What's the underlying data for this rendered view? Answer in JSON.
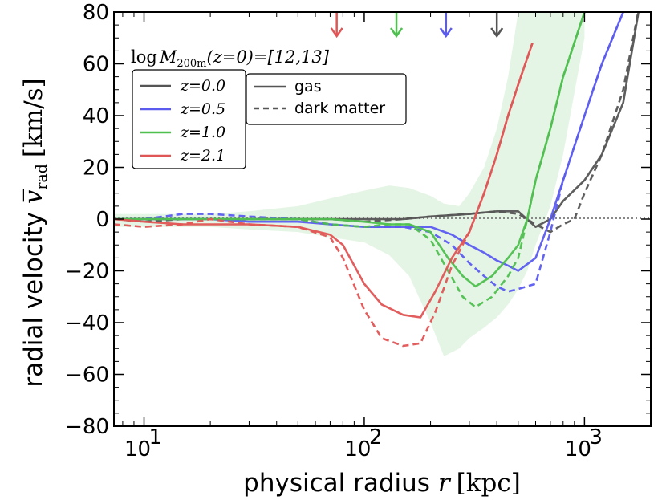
{
  "chart_data": {
    "type": "line",
    "xscale": "log",
    "xlim": [
      7.3,
      2000
    ],
    "ylim": [
      -80,
      80
    ],
    "xlabel": {
      "prefix": "physical radius ",
      "var": "r",
      "unit": "[kpc]"
    },
    "ylabel": {
      "prefix": "radial velocity ",
      "var": "v̅",
      "sub": "rad",
      "unit": "[km/s]"
    },
    "x_ticks": [
      {
        "value": 10,
        "label": "10",
        "exp": "1"
      },
      {
        "value": 100,
        "label": "10",
        "exp": "2"
      },
      {
        "value": 1000,
        "label": "10",
        "exp": "3"
      }
    ],
    "y_ticks": [
      -80,
      -60,
      -40,
      -20,
      0,
      20,
      40,
      60,
      80
    ],
    "y_tick_labels": [
      "−80",
      "−60",
      "−40",
      "−20",
      "0",
      "20",
      "40",
      "60",
      "80"
    ],
    "annotation": "log M200m(z=0)=[12,13]",
    "annotation_parts": {
      "log": "log",
      "M": "M",
      "sub": "200m",
      "rest": "(z=0)=[12,13]"
    },
    "legend_redshift": [
      {
        "label": "z=0.0",
        "color": "#555555"
      },
      {
        "label": "z=0.5",
        "color": "#5b5bf0"
      },
      {
        "label": "z=1.0",
        "color": "#4fbf4f"
      },
      {
        "label": "z=2.1",
        "color": "#e05555"
      }
    ],
    "legend_style": [
      {
        "label": "gas",
        "dash": "solid"
      },
      {
        "label": "dark matter",
        "dash": "dashed"
      }
    ],
    "arrows_x": [
      {
        "x": 75,
        "color": "#e05555"
      },
      {
        "x": 140,
        "color": "#4fbf4f"
      },
      {
        "x": 235,
        "color": "#5b5bf0"
      },
      {
        "x": 400,
        "color": "#555555"
      }
    ],
    "band": {
      "color": "#4fbf4f",
      "x": [
        7.3,
        10,
        15,
        20,
        30,
        50,
        70,
        100,
        130,
        160,
        200,
        230,
        270,
        300,
        350,
        400,
        450,
        500,
        550,
        600,
        700,
        800,
        1000
      ],
      "upper": [
        2,
        2,
        2,
        2,
        3,
        5,
        8,
        11,
        13,
        12,
        9,
        6,
        5,
        10,
        20,
        35,
        55,
        80,
        100,
        120,
        160,
        200,
        260
      ],
      "lower": [
        -3,
        -3,
        -3,
        -3,
        -4,
        -5,
        -7,
        -9,
        -14,
        -22,
        -40,
        -53,
        -50,
        -46,
        -42,
        -38,
        -33,
        -27,
        -20,
        -10,
        5,
        25,
        70
      ]
    },
    "series": [
      {
        "redshift": "z=0.0",
        "component": "gas",
        "color": "#555555",
        "x": [
          7.3,
          10,
          15,
          20,
          30,
          50,
          70,
          100,
          150,
          200,
          300,
          400,
          500,
          600,
          700,
          800,
          1000,
          1200,
          1500,
          1800
        ],
        "y": [
          0,
          0,
          0,
          0,
          0,
          0,
          0,
          0,
          0,
          1,
          2,
          3,
          3,
          -3,
          0,
          7,
          15,
          25,
          45,
          85
        ]
      },
      {
        "redshift": "z=0.0",
        "component": "dark matter",
        "color": "#555555",
        "x": [
          7.3,
          10,
          15,
          20,
          30,
          50,
          70,
          100,
          150,
          200,
          300,
          400,
          500,
          600,
          700,
          800,
          900,
          1000,
          1200,
          1500,
          1800
        ],
        "y": [
          0,
          -1,
          0,
          0,
          0,
          0,
          0,
          -1,
          0,
          1,
          2,
          3,
          2,
          -2,
          -5,
          -2,
          0,
          10,
          25,
          50,
          85
        ]
      },
      {
        "redshift": "z=0.5",
        "component": "gas",
        "color": "#5b5bf0",
        "x": [
          7.3,
          10,
          15,
          20,
          30,
          50,
          70,
          100,
          150,
          200,
          250,
          300,
          350,
          400,
          450,
          500,
          600,
          700,
          800,
          1000,
          1200,
          1500
        ],
        "y": [
          0,
          0,
          0,
          0,
          -1,
          -1,
          -2,
          -3,
          -3,
          -3,
          -6,
          -10,
          -13,
          -16,
          -18,
          -20,
          -15,
          0,
          15,
          40,
          60,
          80
        ]
      },
      {
        "redshift": "z=0.5",
        "component": "dark matter",
        "color": "#5b5bf0",
        "x": [
          7.3,
          10,
          15,
          20,
          30,
          50,
          70,
          100,
          150,
          200,
          250,
          300,
          350,
          400,
          450,
          500,
          600,
          700,
          800,
          1000,
          1200,
          1500
        ],
        "y": [
          0,
          0,
          2,
          2,
          1,
          0,
          -2,
          -3,
          -3,
          -5,
          -10,
          -17,
          -22,
          -26,
          -28,
          -27,
          -25,
          -5,
          15,
          40,
          60,
          80
        ]
      },
      {
        "redshift": "z=1.0",
        "component": "gas",
        "color": "#4fbf4f",
        "x": [
          7.3,
          10,
          15,
          20,
          30,
          50,
          70,
          100,
          130,
          160,
          200,
          240,
          280,
          320,
          380,
          450,
          500,
          550,
          600,
          700,
          800,
          1000
        ],
        "y": [
          0,
          0,
          0,
          0,
          0,
          0,
          0,
          -1,
          -2,
          -2,
          -5,
          -15,
          -22,
          -26,
          -22,
          -15,
          -10,
          0,
          15,
          35,
          55,
          80
        ]
      },
      {
        "redshift": "z=1.0",
        "component": "dark matter",
        "color": "#4fbf4f",
        "x": [
          7.3,
          10,
          15,
          20,
          30,
          50,
          70,
          100,
          130,
          160,
          200,
          240,
          280,
          320,
          380,
          450,
          500,
          550,
          600,
          700,
          800,
          1000
        ],
        "y": [
          0,
          0,
          0,
          0,
          0,
          0,
          -2,
          -3,
          -2,
          -2,
          -8,
          -20,
          -30,
          -34,
          -30,
          -22,
          -15,
          0,
          15,
          35,
          55,
          80
        ]
      },
      {
        "redshift": "z=2.1",
        "component": "gas",
        "color": "#e05555",
        "x": [
          7.3,
          10,
          15,
          20,
          30,
          50,
          70,
          80,
          100,
          120,
          150,
          180,
          210,
          250,
          300,
          350,
          400,
          450,
          500,
          580
        ],
        "y": [
          0,
          -1,
          -2,
          -2,
          -2,
          -3,
          -6,
          -10,
          -25,
          -33,
          -37,
          -38,
          -28,
          -15,
          -5,
          10,
          25,
          40,
          52,
          68
        ]
      },
      {
        "redshift": "z=2.1",
        "component": "dark matter",
        "color": "#e05555",
        "x": [
          7.3,
          10,
          15,
          20,
          30,
          50,
          70,
          80,
          100,
          120,
          150,
          180,
          210,
          250,
          300,
          350,
          400,
          450,
          500,
          580
        ],
        "y": [
          -2,
          -3,
          -2,
          0,
          -2,
          -3,
          -7,
          -15,
          -35,
          -46,
          -49,
          -48,
          -36,
          -18,
          -5,
          10,
          25,
          40,
          52,
          68
        ]
      }
    ]
  }
}
